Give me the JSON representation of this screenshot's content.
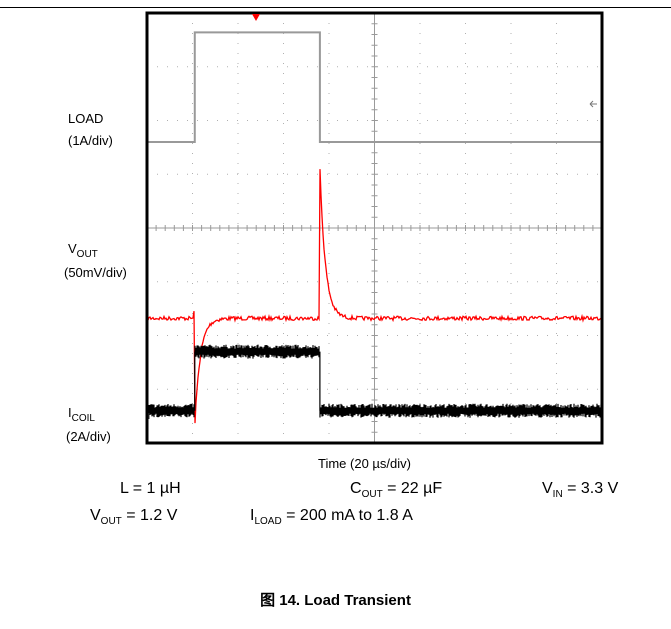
{
  "chart_data": {
    "type": "line",
    "title": "",
    "xlabel": "Time (20 µs/div)",
    "x_divisions": 10,
    "y_divisions": 8,
    "grid": true,
    "x": [
      0,
      1.05,
      1.06,
      3.8,
      3.81,
      4.3,
      10
    ],
    "series": [
      {
        "name": "LOAD",
        "scale": "1A/div",
        "color": "#999999",
        "units": "A",
        "values": [
          0.2,
          0.2,
          1.8,
          1.8,
          0.2,
          0.2,
          0.2
        ]
      },
      {
        "name": "VOUT",
        "scale": "50mV/div",
        "color": "#ff0000",
        "units": "V",
        "events": [
          {
            "t_div": 1.05,
            "deviation_mV": -100
          },
          {
            "t_div": 3.8,
            "deviation_mV": 140
          }
        ],
        "nominal": 1.2
      },
      {
        "name": "ICOIL",
        "scale": "2A/div",
        "color": "#000000",
        "units": "A",
        "values": [
          0.2,
          0.2,
          1.8,
          1.8,
          0.2,
          0.2,
          0.2
        ]
      }
    ]
  },
  "labels": {
    "load": {
      "name": "LOAD",
      "scale": "(1A/div)"
    },
    "vout": {
      "name": "V",
      "sub": "OUT",
      "scale": "(50mV/div)"
    },
    "icoil": {
      "name": "I",
      "sub": "COIL",
      "scale": "(2A/div)"
    }
  },
  "params": {
    "l": "L = 1 µH",
    "cout_name": "C",
    "cout_sub": "OUT",
    "cout_value": " = 22 µF",
    "vin_name": "V",
    "vin_sub": "IN",
    "vin_value": " = 3.3 V",
    "vout_name": "V",
    "vout_sub": "OUT",
    "vout_value": " = 1.2 V",
    "iload_name": "I",
    "iload_sub": "LOAD",
    "iload_value": " = 200 mA to 1.8 A"
  },
  "caption": "图 14. Load Transient",
  "colors": {
    "load": "#999999",
    "vout": "#ff0000",
    "icoil": "#000000",
    "trigger": "#ff0000"
  }
}
